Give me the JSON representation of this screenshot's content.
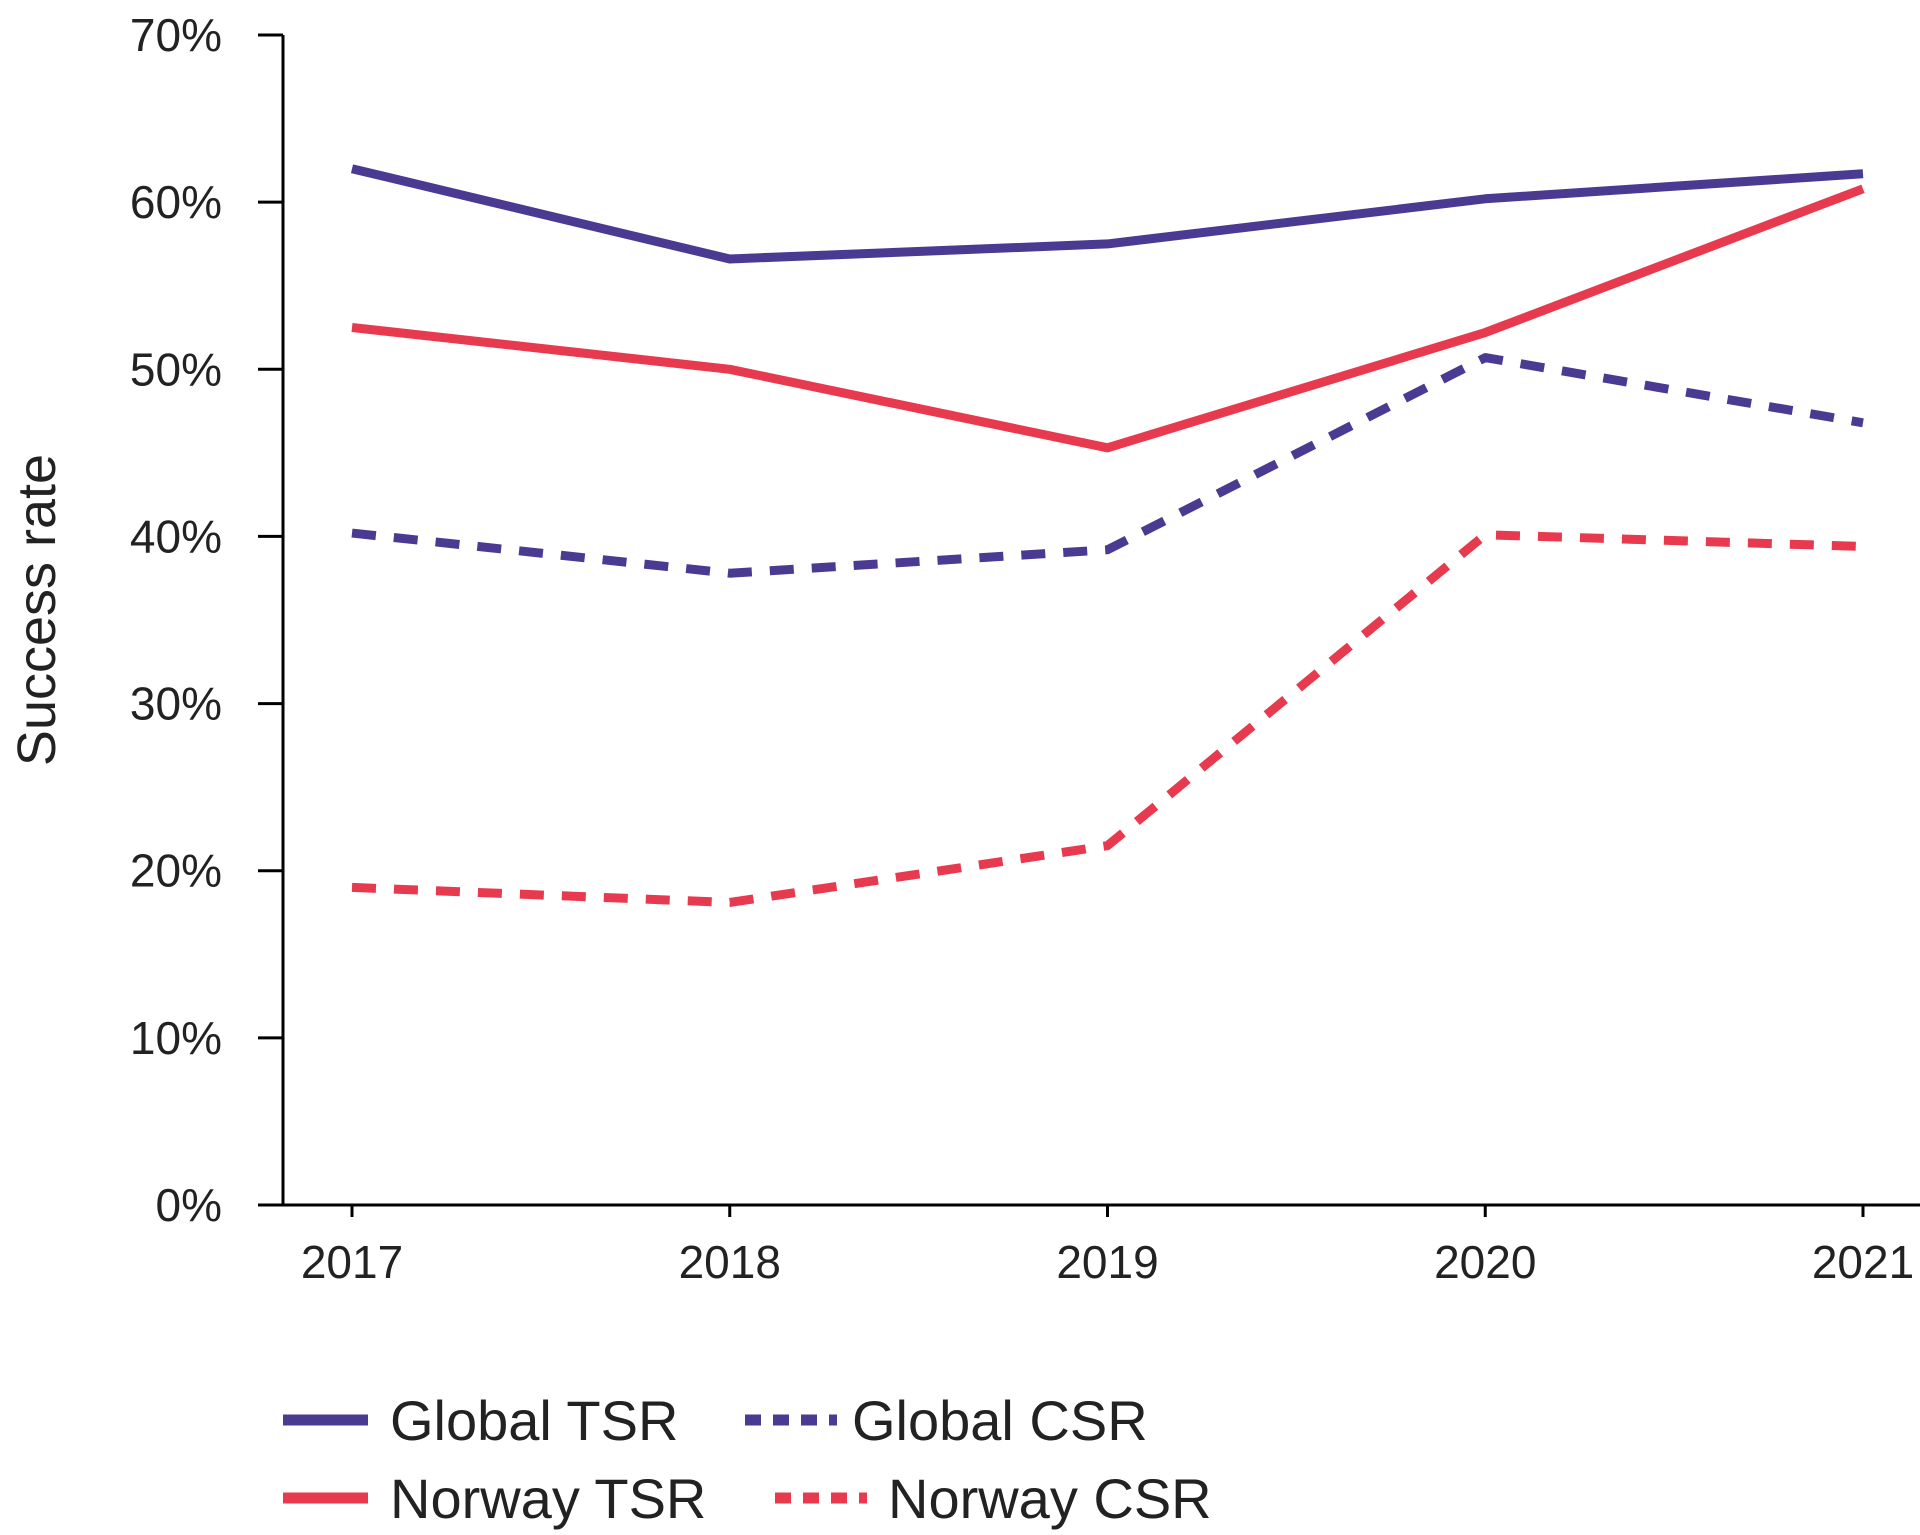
{
  "chart_data": {
    "type": "line",
    "title": "",
    "xlabel": "",
    "ylabel": "Success rate",
    "categories": [
      "2017",
      "2018",
      "2019",
      "2020",
      "2021"
    ],
    "ylim": [
      0,
      70
    ],
    "yticks": [
      "0%",
      "10%",
      "20%",
      "30%",
      "40%",
      "50%",
      "60%",
      "70%"
    ],
    "grid": false,
    "legend_position": "bottom",
    "series": [
      {
        "name": "Global TSR",
        "values": [
          62.0,
          56.6,
          57.5,
          60.2,
          61.7
        ],
        "color": "#4b3a92",
        "style": "solid"
      },
      {
        "name": "Global CSR",
        "values": [
          40.2,
          37.8,
          39.2,
          50.7,
          46.8
        ],
        "color": "#4b3a92",
        "style": "dashed"
      },
      {
        "name": "Norway TSR",
        "values": [
          52.5,
          50.0,
          45.3,
          52.2,
          60.8
        ],
        "color": "#e83a4e",
        "style": "solid"
      },
      {
        "name": "Norway CSR",
        "values": [
          19.0,
          18.1,
          21.5,
          40.1,
          39.4
        ],
        "color": "#e83a4e",
        "style": "dashed"
      }
    ]
  }
}
